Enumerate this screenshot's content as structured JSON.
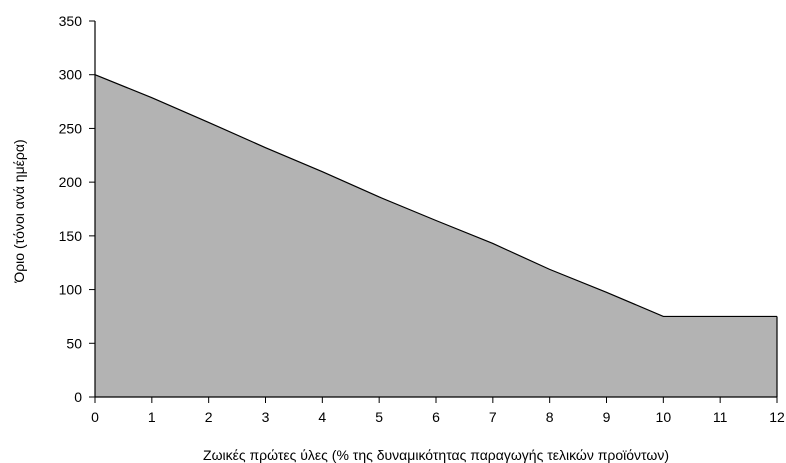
{
  "chart_data": {
    "type": "area",
    "title": "",
    "xlabel": "Ζωικές πρώτες ύλες (% της δυναμικότητας παραγωγής τελικών προϊόντων)",
    "ylabel": "Όριο (τόνοι ανά ημέρα)",
    "xlim": [
      0,
      12
    ],
    "ylim": [
      0,
      350
    ],
    "x_ticks": [
      "0",
      "1",
      "2",
      "3",
      "4",
      "5",
      "6",
      "7",
      "8",
      "9",
      "10",
      "11",
      "12"
    ],
    "y_ticks": [
      "0",
      "50",
      "100",
      "150",
      "200",
      "250",
      "300",
      "350"
    ],
    "series": [
      {
        "x": [
          0,
          1,
          2,
          3,
          4,
          5,
          6,
          7,
          8,
          9,
          10,
          11,
          12
        ],
        "values": [
          300,
          278.6,
          255.6,
          232.1,
          209.7,
          186.2,
          164.3,
          142.9,
          118.8,
          97.5,
          75,
          75,
          75
        ]
      }
    ],
    "fill_color": "#b3b3b3",
    "line_color": "#000000",
    "grid": false
  }
}
